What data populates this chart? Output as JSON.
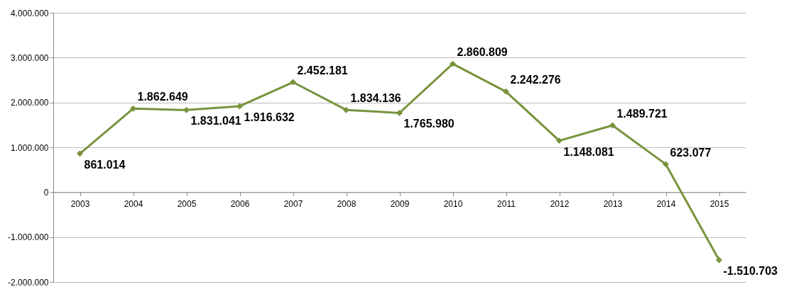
{
  "chart_data": {
    "type": "line",
    "categories": [
      "2003",
      "2004",
      "2005",
      "2006",
      "2007",
      "2008",
      "2009",
      "2010",
      "2011",
      "2012",
      "2013",
      "2014",
      "2015"
    ],
    "series": [
      {
        "color": "#77933c",
        "values": [
          861014,
          1862649,
          1831041,
          1916632,
          2452181,
          1834136,
          1765980,
          2860809,
          2242276,
          1148081,
          1489721,
          623077,
          -1510703
        ],
        "value_labels": [
          "861.014",
          "1.862.649",
          "1.831.041",
          "1.916.632",
          "2.452.181",
          "1.834.136",
          "1.765.980",
          "2.860.809",
          "2.242.276",
          "1.148.081",
          "1.489.721",
          "623.077",
          "-1.510.703"
        ]
      }
    ],
    "ylim": [
      -2000000,
      4000000
    ],
    "yticks": [
      {
        "value": -2000000,
        "label": "-2.000.000"
      },
      {
        "value": -1000000,
        "label": "-1.000.000"
      },
      0,
      {
        "value": 1000000,
        "label": "1.000.000"
      },
      {
        "value": 2000000,
        "label": "2.000.000"
      },
      {
        "value": 3000000,
        "label": "3.000.000"
      },
      {
        "value": 4000000,
        "label": "4.000.000"
      }
    ],
    "grid": "y",
    "marker": "diamond",
    "line_style": "solid"
  }
}
